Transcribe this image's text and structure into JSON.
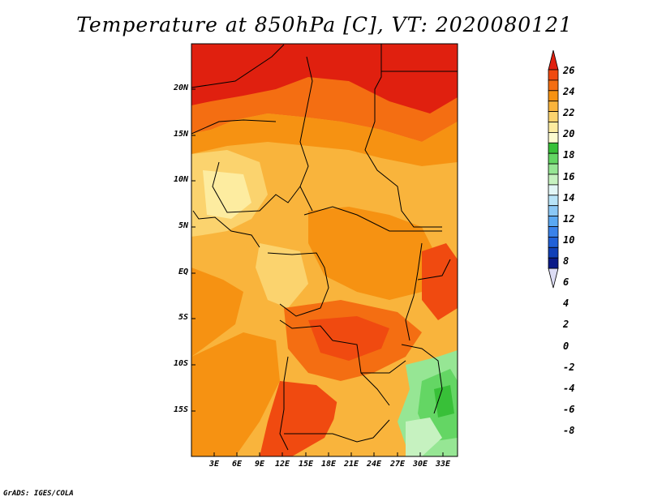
{
  "title": "Temperature at 850hPa [C], VT: 2020080121",
  "credit": "GrADS: IGES/COLA",
  "lat_labels": [
    "20N",
    "15N",
    "10N",
    "5N",
    "EQ",
    "5S",
    "10S",
    "15S"
  ],
  "lon_labels": [
    "3E",
    "6E",
    "9E",
    "12E",
    "15E",
    "18E",
    "21E",
    "24E",
    "27E",
    "30E",
    "33E"
  ],
  "colorbar": {
    "labels": [
      "26",
      "24",
      "22",
      "20",
      "18",
      "16",
      "14",
      "12",
      "10",
      "8",
      "6",
      "4",
      "2",
      "0",
      "-2",
      "-4",
      "-6",
      "-8"
    ],
    "colors": [
      "#e0200f",
      "#f04a10",
      "#f46e12",
      "#f69212",
      "#f9b43c",
      "#fbd36e",
      "#fdeca0",
      "#fdfbd0",
      "#38c038",
      "#64d664",
      "#96e694",
      "#c6f2c0",
      "#e2f6f6",
      "#b8e4f8",
      "#8ac8f6",
      "#5aa8f2",
      "#3a82ea",
      "#2060d8",
      "#1040b8",
      "#0a1a88",
      "#dcdcf4"
    ]
  }
}
